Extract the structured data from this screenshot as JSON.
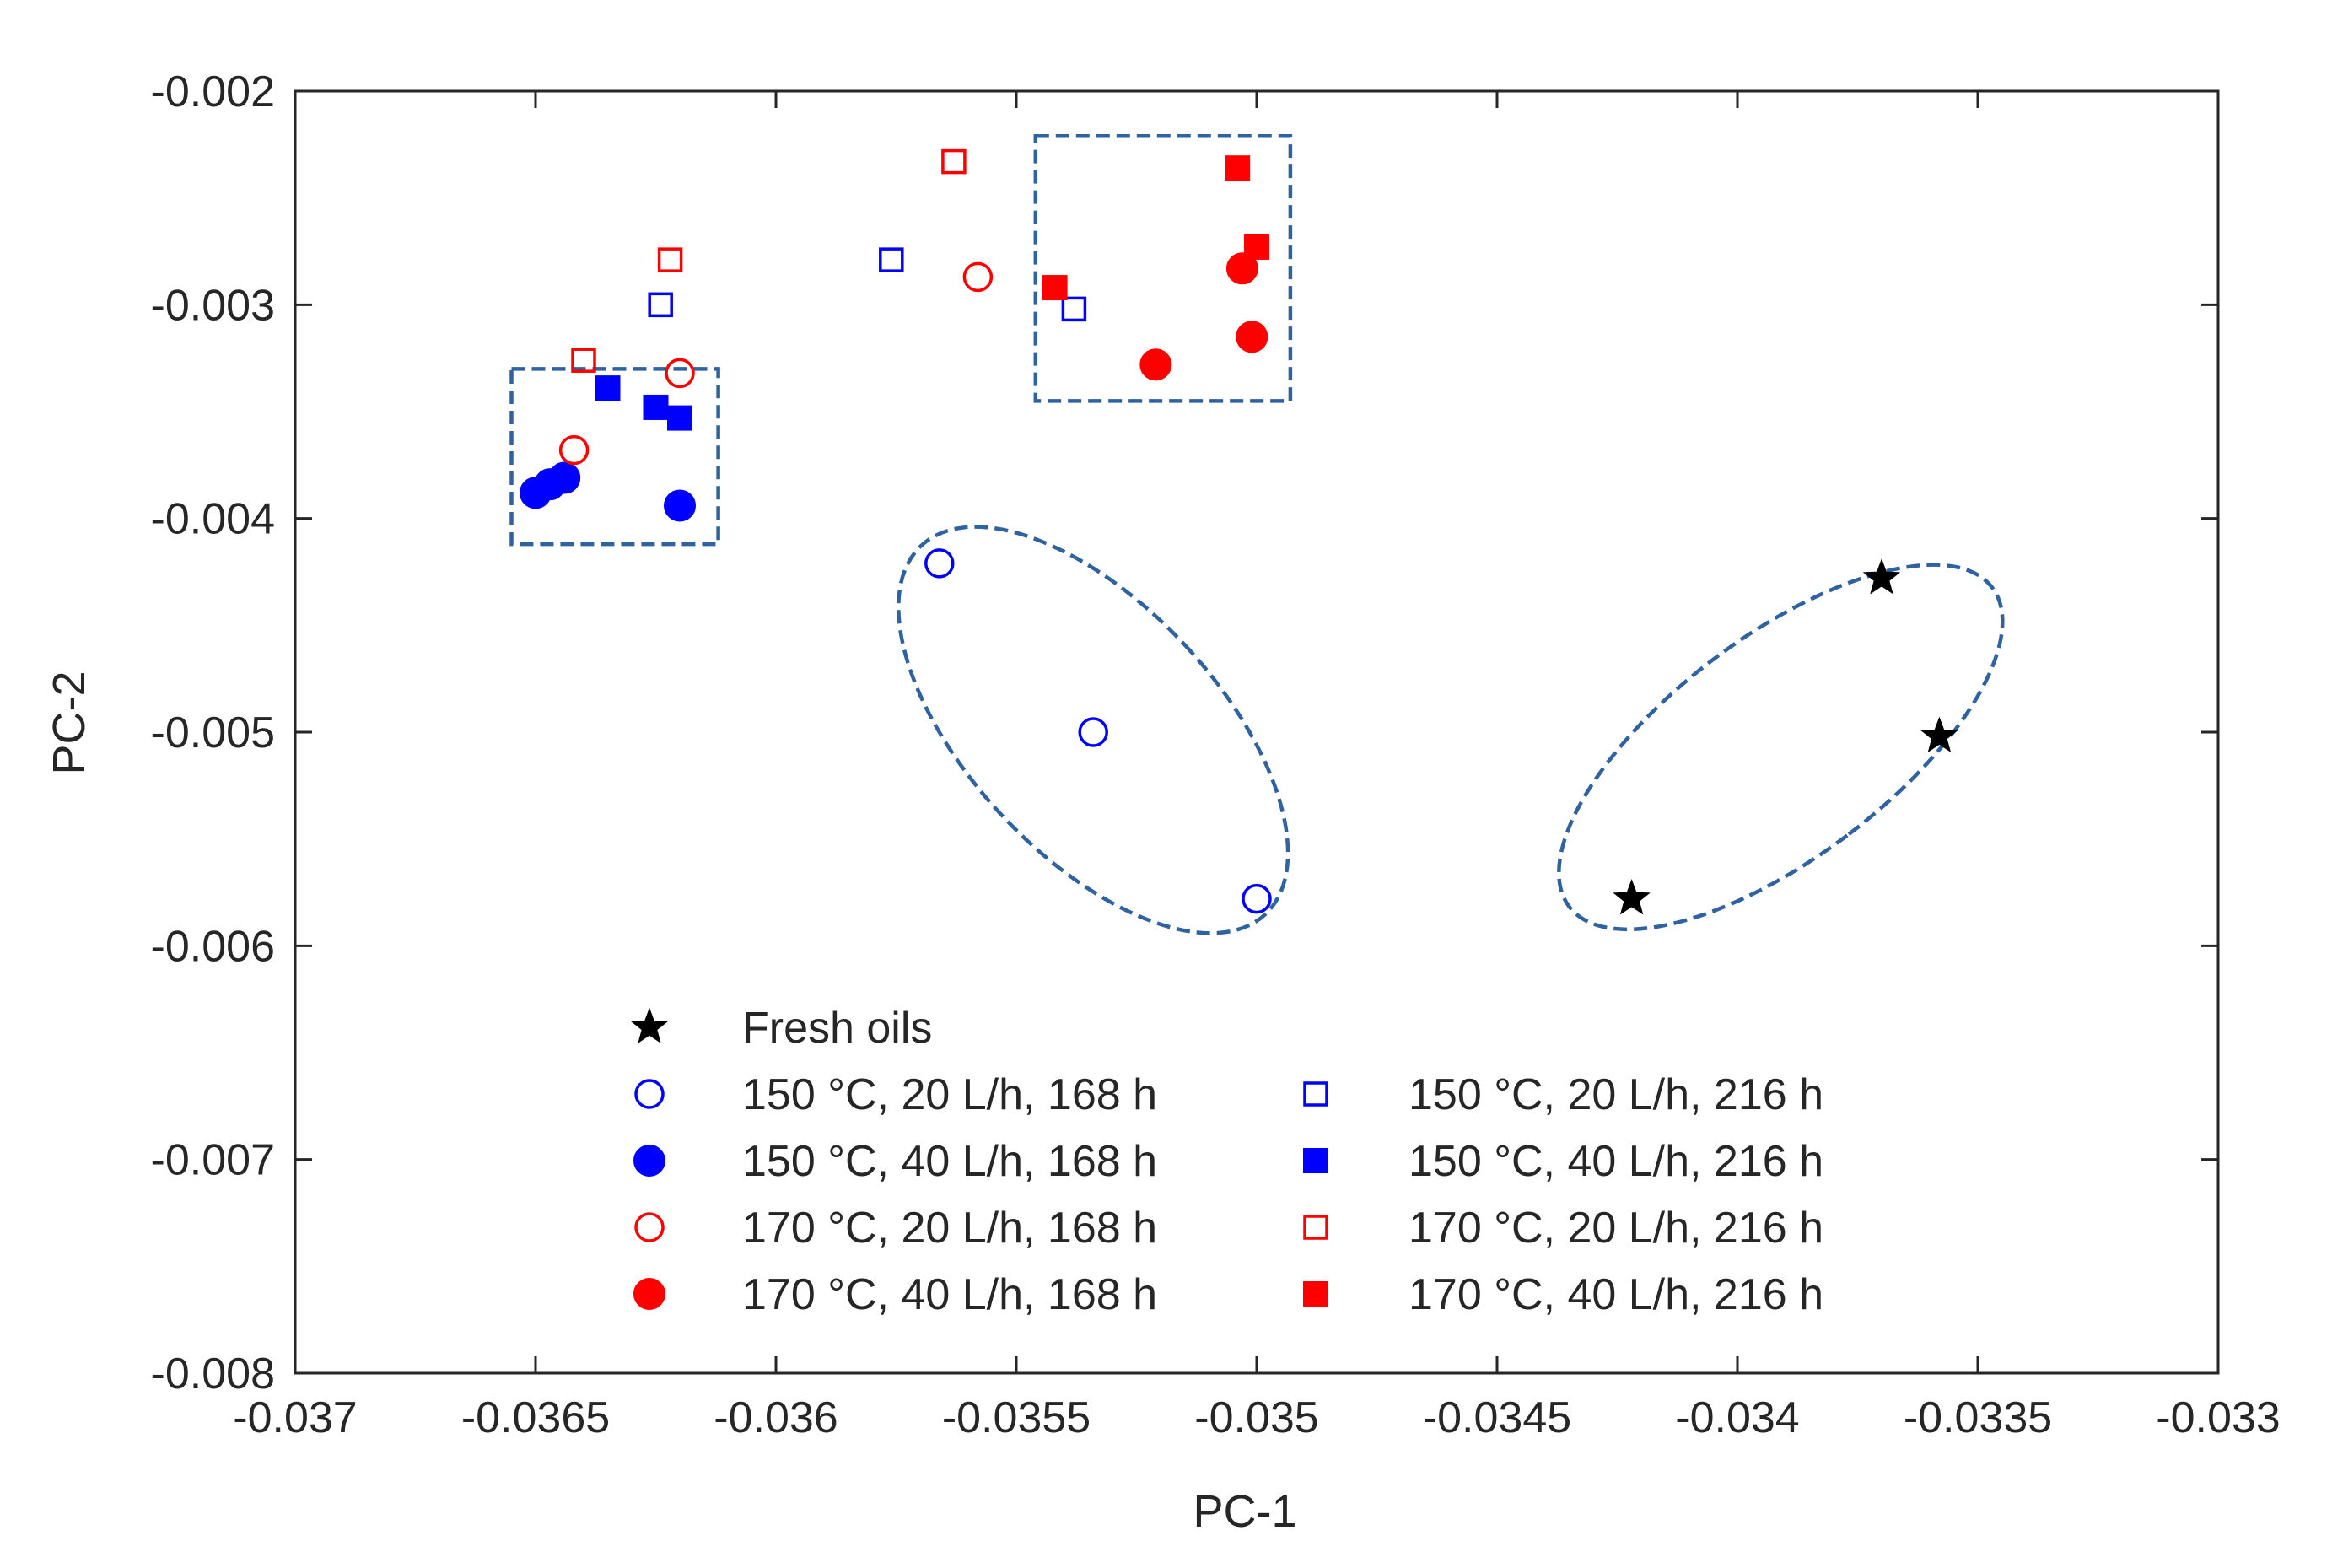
{
  "chart_data": {
    "type": "scatter",
    "title": "",
    "xlabel": "PC-1",
    "ylabel": "PC-2",
    "xlim": [
      -0.037,
      -0.033
    ],
    "ylim": [
      -0.008,
      -0.002
    ],
    "xticks": [
      -0.037,
      -0.0365,
      -0.036,
      -0.0355,
      -0.035,
      -0.0345,
      -0.034,
      -0.0335,
      -0.033
    ],
    "yticks": [
      -0.008,
      -0.007,
      -0.006,
      -0.005,
      -0.004,
      -0.003,
      -0.002
    ],
    "xtick_labels": [
      "-0.037",
      "-0.0365",
      "-0.036",
      "-0.0355",
      "-0.035",
      "-0.0345",
      "-0.034",
      "-0.0335",
      "-0.033"
    ],
    "ytick_labels": [
      "-0.008",
      "-0.007",
      "-0.006",
      "-0.005",
      "-0.004",
      "-0.003",
      "-0.002"
    ],
    "grid": false,
    "legend_position": "bottom-left",
    "series": [
      {
        "name": "Fresh oils",
        "marker": "star",
        "filled": true,
        "color": "#000000",
        "points": [
          [
            -0.0337,
            -0.00428
          ],
          [
            -0.03358,
            -0.00502
          ],
          [
            -0.03422,
            -0.00578
          ]
        ]
      },
      {
        "name": "150 °C, 20 L/h, 168 h",
        "marker": "circle",
        "filled": false,
        "color": "#0000ff",
        "points": [
          [
            -0.03566,
            -0.00421
          ],
          [
            -0.03534,
            -0.005
          ],
          [
            -0.035,
            -0.00578
          ]
        ]
      },
      {
        "name": "150 °C, 40 L/h, 168 h",
        "marker": "circle",
        "filled": true,
        "color": "#0000ff",
        "points": [
          [
            -0.0365,
            -0.00388
          ],
          [
            -0.03647,
            -0.00384
          ],
          [
            -0.03644,
            -0.00381
          ],
          [
            -0.0362,
            -0.00394
          ]
        ]
      },
      {
        "name": "170 °C, 20 L/h, 168 h",
        "marker": "circle",
        "filled": false,
        "color": "#ff0000",
        "points": [
          [
            -0.03642,
            -0.00368
          ],
          [
            -0.0362,
            -0.00332
          ],
          [
            -0.03558,
            -0.00287
          ]
        ]
      },
      {
        "name": "170 °C, 40 L/h, 168 h",
        "marker": "circle",
        "filled": true,
        "color": "#ff0000",
        "points": [
          [
            -0.03521,
            -0.00328
          ],
          [
            -0.03503,
            -0.00283
          ],
          [
            -0.03501,
            -0.00315
          ]
        ]
      },
      {
        "name": "150 °C, 20 L/h, 216 h",
        "marker": "square",
        "filled": false,
        "color": "#0000ff",
        "points": [
          [
            -0.03624,
            -0.003
          ],
          [
            -0.03576,
            -0.00279
          ],
          [
            -0.03538,
            -0.00302
          ]
        ]
      },
      {
        "name": "150 °C, 40 L/h, 216 h",
        "marker": "square",
        "filled": true,
        "color": "#0000ff",
        "points": [
          [
            -0.03635,
            -0.00339
          ],
          [
            -0.03625,
            -0.00348
          ],
          [
            -0.0362,
            -0.00353
          ]
        ]
      },
      {
        "name": "170 °C, 20 L/h, 216 h",
        "marker": "square",
        "filled": false,
        "color": "#ff0000",
        "points": [
          [
            -0.0364,
            -0.00326
          ],
          [
            -0.03622,
            -0.00279
          ],
          [
            -0.03563,
            -0.00233
          ]
        ]
      },
      {
        "name": "170 °C, 40 L/h, 216 h",
        "marker": "square",
        "filled": true,
        "color": "#ff0000",
        "points": [
          [
            -0.03542,
            -0.00292
          ],
          [
            -0.03504,
            -0.00236
          ],
          [
            -0.035,
            -0.00273
          ]
        ]
      }
    ],
    "annotations": [
      {
        "type": "dashed-rect",
        "name": "group-box-left",
        "x": [
          -0.03655,
          -0.03612
        ],
        "y": [
          -0.00412,
          -0.0033
        ],
        "color": "#2e62a0"
      },
      {
        "type": "dashed-rect",
        "name": "group-box-right",
        "x": [
          -0.03546,
          -0.03493
        ],
        "y": [
          -0.00345,
          -0.00221
        ],
        "color": "#2e62a0"
      },
      {
        "type": "dashed-ellipse",
        "name": "group-ellipse-middle",
        "center": [
          -0.03534,
          -0.00499
        ],
        "rx": 0.00026,
        "ry": 0.00118,
        "rotate": -43,
        "color": "#2e62a0"
      },
      {
        "type": "dashed-ellipse",
        "name": "group-ellipse-right",
        "center": [
          -0.03391,
          -0.00507
        ],
        "rx": 0.00023,
        "ry": 0.00124,
        "rotate": 53,
        "color": "#2e62a0"
      }
    ],
    "legend": {
      "columns": [
        [
          "Fresh oils",
          "150 °C, 20 L/h, 168 h",
          "150 °C, 40 L/h, 168 h",
          "170 °C, 20 L/h, 168 h",
          "170 °C, 40 L/h, 168 h"
        ],
        [
          "150 °C, 20 L/h, 216 h",
          "150 °C, 40 L/h, 216 h",
          "170 °C, 20 L/h, 216 h",
          "170 °C, 40 L/h, 216 h"
        ]
      ]
    }
  }
}
